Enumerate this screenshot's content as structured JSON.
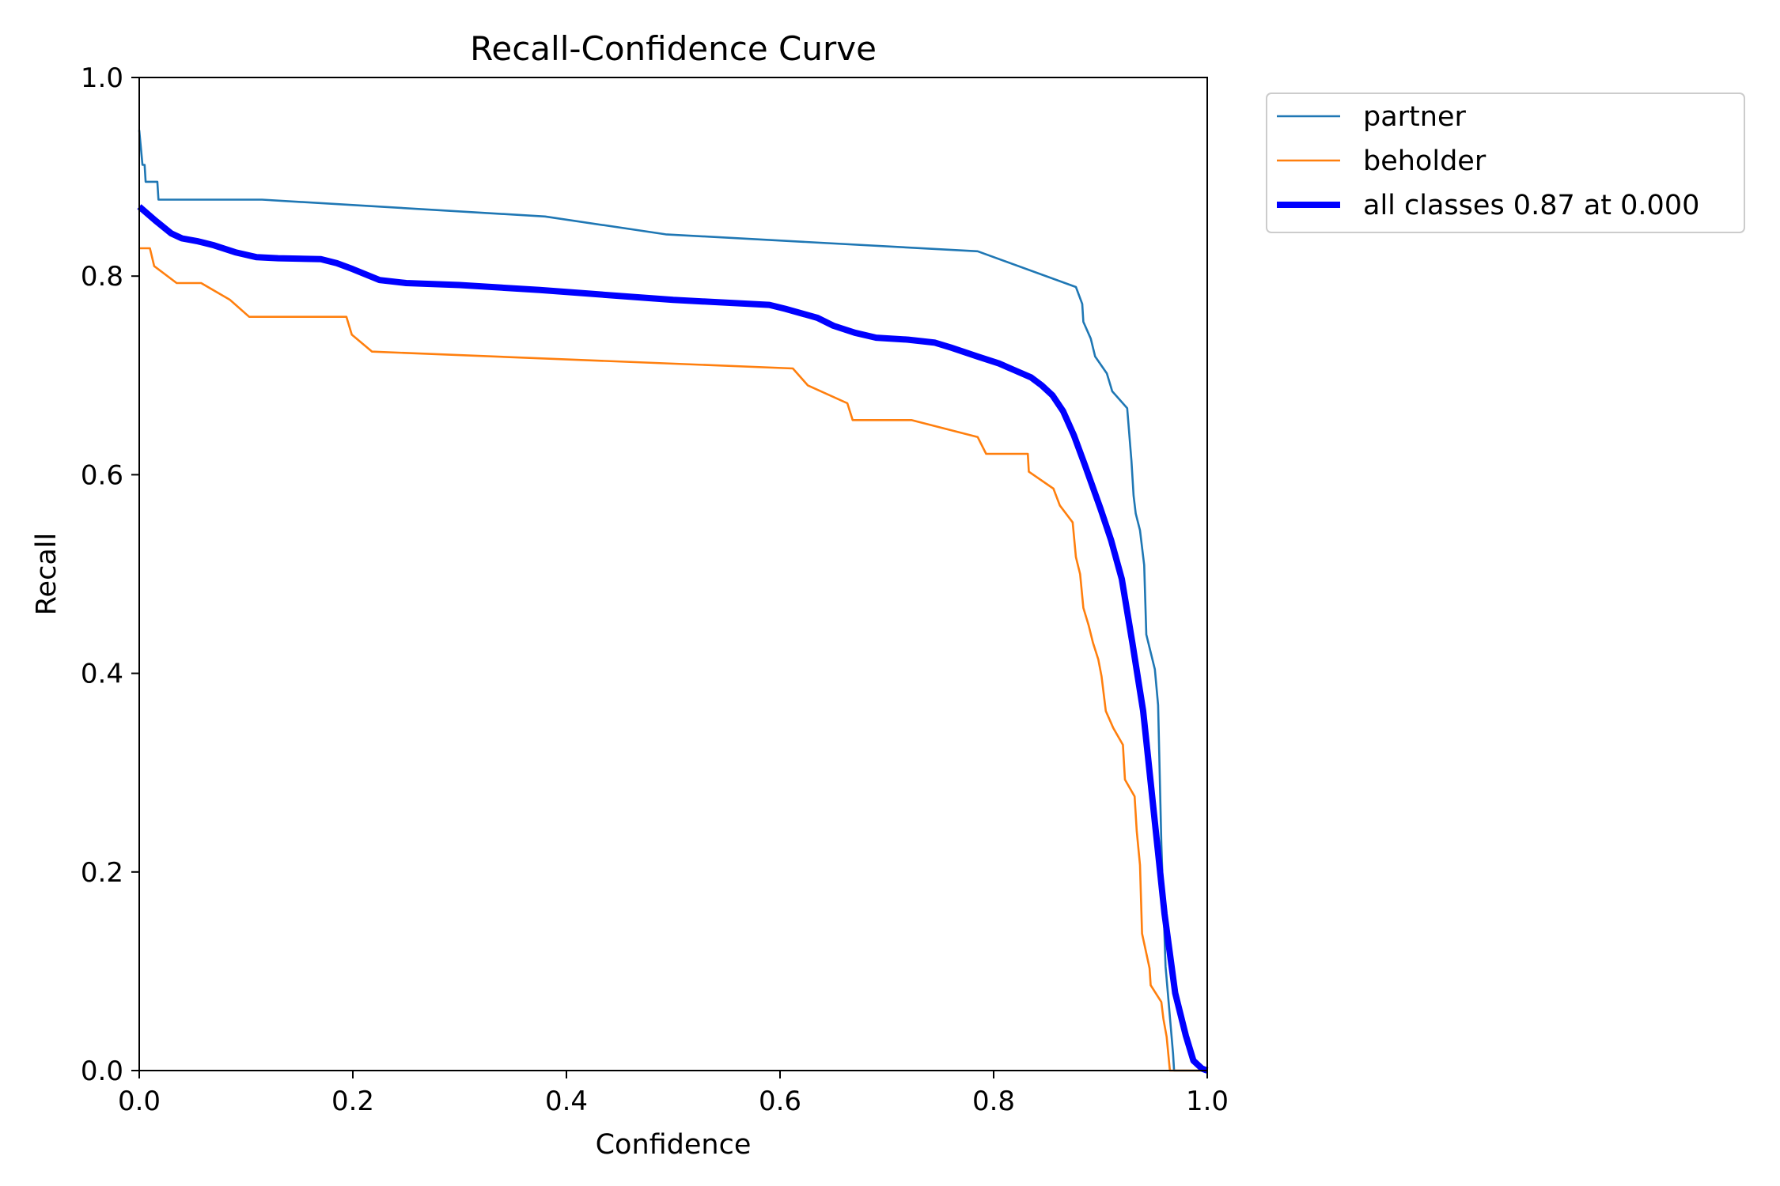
{
  "chart_data": {
    "type": "line",
    "title": "Recall-Confidence Curve",
    "xlabel": "Confidence",
    "ylabel": "Recall",
    "xlim": [
      0,
      1
    ],
    "ylim": [
      0,
      1
    ],
    "xticks": [
      "0.0",
      "0.2",
      "0.4",
      "0.6",
      "0.8",
      "1.0"
    ],
    "yticks": [
      "0.0",
      "0.2",
      "0.4",
      "0.6",
      "0.8",
      "1.0"
    ],
    "grid": false,
    "legend_position": "outside top-right",
    "series": [
      {
        "name": "partner",
        "color": "#1f77b4",
        "line_weight": "thin",
        "points": [
          [
            0.0,
            0.947
          ],
          [
            0.003,
            0.912
          ],
          [
            0.005,
            0.912
          ],
          [
            0.006,
            0.895
          ],
          [
            0.017,
            0.895
          ],
          [
            0.018,
            0.877
          ],
          [
            0.115,
            0.877
          ],
          [
            0.38,
            0.86
          ],
          [
            0.493,
            0.842
          ],
          [
            0.785,
            0.825
          ],
          [
            0.877,
            0.789
          ],
          [
            0.883,
            0.772
          ],
          [
            0.884,
            0.754
          ],
          [
            0.891,
            0.737
          ],
          [
            0.895,
            0.719
          ],
          [
            0.906,
            0.702
          ],
          [
            0.911,
            0.684
          ],
          [
            0.925,
            0.667
          ],
          [
            0.929,
            0.614
          ],
          [
            0.931,
            0.579
          ],
          [
            0.933,
            0.561
          ],
          [
            0.937,
            0.544
          ],
          [
            0.941,
            0.509
          ],
          [
            0.943,
            0.439
          ],
          [
            0.951,
            0.404
          ],
          [
            0.954,
            0.368
          ],
          [
            0.957,
            0.228
          ],
          [
            0.961,
            0.105
          ],
          [
            0.968,
            0.017
          ],
          [
            0.969,
            0.0
          ],
          [
            1.0,
            0.0
          ]
        ]
      },
      {
        "name": "beholder",
        "color": "#ff7f0e",
        "line_weight": "thin",
        "points": [
          [
            0.0,
            0.828
          ],
          [
            0.01,
            0.828
          ],
          [
            0.014,
            0.81
          ],
          [
            0.035,
            0.793
          ],
          [
            0.058,
            0.793
          ],
          [
            0.085,
            0.776
          ],
          [
            0.103,
            0.759
          ],
          [
            0.194,
            0.759
          ],
          [
            0.199,
            0.741
          ],
          [
            0.218,
            0.724
          ],
          [
            0.612,
            0.707
          ],
          [
            0.626,
            0.69
          ],
          [
            0.663,
            0.672
          ],
          [
            0.668,
            0.655
          ],
          [
            0.723,
            0.655
          ],
          [
            0.785,
            0.638
          ],
          [
            0.793,
            0.621
          ],
          [
            0.832,
            0.621
          ],
          [
            0.833,
            0.603
          ],
          [
            0.856,
            0.586
          ],
          [
            0.862,
            0.569
          ],
          [
            0.874,
            0.552
          ],
          [
            0.877,
            0.517
          ],
          [
            0.881,
            0.5
          ],
          [
            0.884,
            0.466
          ],
          [
            0.889,
            0.448
          ],
          [
            0.893,
            0.431
          ],
          [
            0.898,
            0.414
          ],
          [
            0.901,
            0.397
          ],
          [
            0.905,
            0.362
          ],
          [
            0.912,
            0.345
          ],
          [
            0.921,
            0.328
          ],
          [
            0.923,
            0.293
          ],
          [
            0.932,
            0.276
          ],
          [
            0.934,
            0.241
          ],
          [
            0.937,
            0.207
          ],
          [
            0.939,
            0.138
          ],
          [
            0.946,
            0.103
          ],
          [
            0.947,
            0.086
          ],
          [
            0.957,
            0.069
          ],
          [
            0.959,
            0.052
          ],
          [
            0.962,
            0.034
          ],
          [
            0.965,
            0.0
          ],
          [
            1.0,
            0.0
          ]
        ]
      },
      {
        "name": "all classes 0.87 at 0.000",
        "color": "#0000ff",
        "line_weight": "thick",
        "points": [
          [
            0.0,
            0.87
          ],
          [
            0.015,
            0.856
          ],
          [
            0.03,
            0.843
          ],
          [
            0.04,
            0.838
          ],
          [
            0.055,
            0.835
          ],
          [
            0.07,
            0.831
          ],
          [
            0.09,
            0.824
          ],
          [
            0.11,
            0.819
          ],
          [
            0.13,
            0.818
          ],
          [
            0.17,
            0.817
          ],
          [
            0.185,
            0.813
          ],
          [
            0.2,
            0.807
          ],
          [
            0.225,
            0.796
          ],
          [
            0.25,
            0.793
          ],
          [
            0.3,
            0.791
          ],
          [
            0.375,
            0.786
          ],
          [
            0.425,
            0.782
          ],
          [
            0.5,
            0.776
          ],
          [
            0.59,
            0.771
          ],
          [
            0.605,
            0.767
          ],
          [
            0.635,
            0.758
          ],
          [
            0.65,
            0.75
          ],
          [
            0.67,
            0.743
          ],
          [
            0.69,
            0.738
          ],
          [
            0.72,
            0.736
          ],
          [
            0.745,
            0.733
          ],
          [
            0.76,
            0.728
          ],
          [
            0.785,
            0.719
          ],
          [
            0.805,
            0.712
          ],
          [
            0.82,
            0.705
          ],
          [
            0.835,
            0.698
          ],
          [
            0.845,
            0.69
          ],
          [
            0.855,
            0.68
          ],
          [
            0.865,
            0.664
          ],
          [
            0.875,
            0.64
          ],
          [
            0.885,
            0.611
          ],
          [
            0.9,
            0.566
          ],
          [
            0.91,
            0.534
          ],
          [
            0.92,
            0.495
          ],
          [
            0.93,
            0.43
          ],
          [
            0.94,
            0.362
          ],
          [
            0.95,
            0.26
          ],
          [
            0.96,
            0.158
          ],
          [
            0.97,
            0.078
          ],
          [
            0.98,
            0.035
          ],
          [
            0.987,
            0.01
          ],
          [
            0.995,
            0.002
          ],
          [
            1.0,
            0.0
          ]
        ]
      }
    ]
  }
}
